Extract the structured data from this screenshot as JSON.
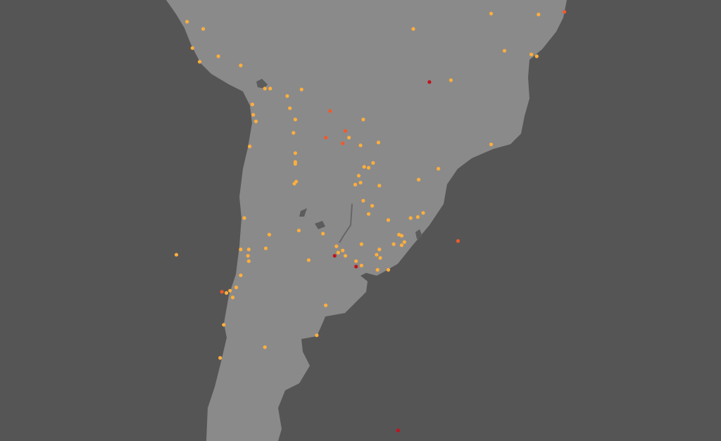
{
  "map": {
    "projection": "mercator",
    "colors": {
      "ocean": "#555555",
      "land": "#8a8a8a",
      "water_bodies": "#5c5c5c"
    },
    "marker_colors": {
      "orange": "#fdae3d",
      "red": "#f15a2b",
      "darkred": "#c0141e"
    },
    "points": [
      [
        -77.4,
        -9.4,
        "orange"
      ],
      [
        -75.6,
        -10.2,
        "orange"
      ],
      [
        -76.8,
        -12.3,
        "orange"
      ],
      [
        -76.0,
        -13.8,
        "orange"
      ],
      [
        -73.9,
        -13.2,
        "orange"
      ],
      [
        -71.4,
        -14.2,
        "orange"
      ],
      [
        -68.7,
        -16.7,
        "orange"
      ],
      [
        -68.1,
        -16.7,
        "orange"
      ],
      [
        -64.6,
        -16.8,
        "orange"
      ],
      [
        -66.2,
        -17.5,
        "orange"
      ],
      [
        -70.1,
        -18.4,
        "orange"
      ],
      [
        -65.9,
        -18.8,
        "orange"
      ],
      [
        -61.4,
        -19.1,
        "red"
      ],
      [
        -70.0,
        -19.5,
        "orange"
      ],
      [
        -69.7,
        -20.2,
        "orange"
      ],
      [
        -65.3,
        -20.0,
        "orange"
      ],
      [
        -57.7,
        -20.0,
        "orange"
      ],
      [
        -65.5,
        -21.4,
        "orange"
      ],
      [
        -59.7,
        -21.2,
        "red"
      ],
      [
        -59.3,
        -21.9,
        "orange"
      ],
      [
        -61.9,
        -21.9,
        "red"
      ],
      [
        -60.0,
        -22.5,
        "red"
      ],
      [
        -58.0,
        -22.7,
        "orange"
      ],
      [
        -56.0,
        -22.4,
        "orange"
      ],
      [
        -70.4,
        -22.8,
        "orange"
      ],
      [
        -65.3,
        -23.5,
        "orange"
      ],
      [
        -65.3,
        -24.4,
        "orange"
      ],
      [
        -65.3,
        -24.6,
        "orange"
      ],
      [
        -57.6,
        -24.9,
        "orange"
      ],
      [
        -56.6,
        -24.5,
        "orange"
      ],
      [
        -57.1,
        -25.0,
        "orange"
      ],
      [
        -65.2,
        -26.4,
        "orange"
      ],
      [
        -65.4,
        -26.6,
        "orange"
      ],
      [
        -58.2,
        -25.8,
        "orange"
      ],
      [
        -58.6,
        -26.7,
        "orange"
      ],
      [
        -58.0,
        -26.5,
        "orange"
      ],
      [
        -55.9,
        -26.8,
        "orange"
      ],
      [
        -51.5,
        -26.2,
        "orange"
      ],
      [
        -49.3,
        -25.1,
        "orange"
      ],
      [
        -57.7,
        -28.3,
        "orange"
      ],
      [
        -56.7,
        -28.8,
        "orange"
      ],
      [
        -57.1,
        -29.6,
        "orange"
      ],
      [
        -71.0,
        -30.0,
        "orange"
      ],
      [
        -52.4,
        -30.0,
        "orange"
      ],
      [
        -51.6,
        -29.9,
        "orange"
      ],
      [
        -51.0,
        -29.5,
        "orange"
      ],
      [
        -54.9,
        -30.2,
        "orange"
      ],
      [
        -68.2,
        -31.6,
        "orange"
      ],
      [
        -64.9,
        -31.2,
        "orange"
      ],
      [
        -62.2,
        -31.5,
        "orange"
      ],
      [
        -53.7,
        -31.6,
        "orange"
      ],
      [
        -53.4,
        -31.7,
        "orange"
      ],
      [
        -54.3,
        -32.5,
        "orange"
      ],
      [
        -53.1,
        -32.3,
        "orange"
      ],
      [
        -53.4,
        -32.6,
        "orange"
      ],
      [
        -57.9,
        -32.5,
        "orange"
      ],
      [
        -71.4,
        -33.0,
        "orange"
      ],
      [
        -70.5,
        -33.0,
        "orange"
      ],
      [
        -68.6,
        -32.9,
        "orange"
      ],
      [
        -70.6,
        -33.6,
        "orange"
      ],
      [
        -70.5,
        -34.1,
        "orange"
      ],
      [
        -60.7,
        -32.7,
        "orange"
      ],
      [
        -60.5,
        -33.3,
        "orange"
      ],
      [
        -60.0,
        -33.1,
        "orange"
      ],
      [
        -59.7,
        -33.6,
        "orange"
      ],
      [
        -60.9,
        -33.6,
        "darkred"
      ],
      [
        -63.8,
        -34.0,
        "orange"
      ],
      [
        -55.9,
        -33.0,
        "orange"
      ],
      [
        -56.2,
        -33.5,
        "orange"
      ],
      [
        -55.8,
        -33.8,
        "orange"
      ],
      [
        -58.5,
        -34.1,
        "orange"
      ],
      [
        -58.5,
        -34.6,
        "darkred"
      ],
      [
        -57.9,
        -34.5,
        "orange"
      ],
      [
        -56.1,
        -34.9,
        "orange"
      ],
      [
        -54.9,
        -34.9,
        "orange"
      ],
      [
        -47.1,
        -32.2,
        "red"
      ],
      [
        -78.6,
        -33.5,
        "orange"
      ],
      [
        -71.4,
        -35.4,
        "orange"
      ],
      [
        -71.9,
        -36.5,
        "orange"
      ],
      [
        -73.5,
        -36.9,
        "red"
      ],
      [
        -73.0,
        -37.0,
        "orange"
      ],
      [
        -72.6,
        -36.8,
        "orange"
      ],
      [
        -72.3,
        -37.4,
        "orange"
      ],
      [
        -61.9,
        -38.1,
        "orange"
      ],
      [
        -73.3,
        -39.8,
        "orange"
      ],
      [
        -62.9,
        -40.7,
        "orange"
      ],
      [
        -68.7,
        -41.7,
        "orange"
      ],
      [
        -73.7,
        -42.6,
        "orange"
      ],
      [
        -53.8,
        -48.3,
        "darkred"
      ],
      [
        -52.1,
        -10.2,
        "orange"
      ],
      [
        -43.4,
        -8.5,
        "orange"
      ],
      [
        -41.9,
        -12.6,
        "orange"
      ],
      [
        -38.9,
        -13.0,
        "orange"
      ],
      [
        -38.3,
        -13.2,
        "orange"
      ],
      [
        -38.1,
        -8.6,
        "orange"
      ],
      [
        -35.2,
        -8.3,
        "red"
      ],
      [
        -50.3,
        -16.0,
        "darkred"
      ],
      [
        -47.9,
        -15.8,
        "orange"
      ],
      [
        -43.4,
        -22.6,
        "orange"
      ]
    ]
  }
}
